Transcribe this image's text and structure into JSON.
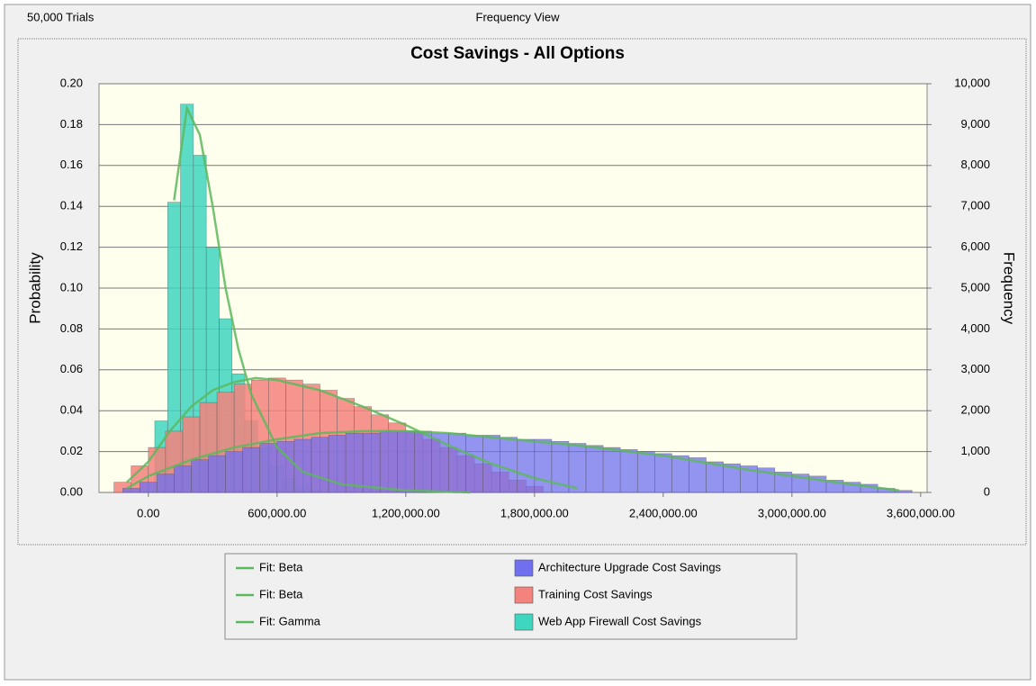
{
  "header": {
    "trials": "50,000 Trials",
    "view": "Frequency View"
  },
  "chart_data": {
    "type": "histogram",
    "title": "Cost Savings - All Options",
    "ylabel": "Probability",
    "y2label": "Frequency",
    "xlim": [
      -230000,
      3630000
    ],
    "xticks": [
      {
        "value": 0,
        "label": "0.00"
      },
      {
        "value": 600000,
        "label": "600,000.00"
      },
      {
        "value": 1200000,
        "label": "1,200,000.00"
      },
      {
        "value": 1800000,
        "label": "1,800,000.00"
      },
      {
        "value": 2400000,
        "label": "2,400,000.00"
      },
      {
        "value": 3000000,
        "label": "3,000,000.00"
      },
      {
        "value": 3600000,
        "label": "3,600,000.00"
      }
    ],
    "ylim": [
      0,
      0.2
    ],
    "yticks": [
      {
        "value": 0,
        "label": "0.00"
      },
      0.02,
      0.04,
      0.06,
      0.08,
      {
        "value": 0.1,
        "label": "0.10"
      },
      0.12,
      0.14,
      0.16,
      0.18,
      {
        "value": 0.2,
        "label": "0.20"
      }
    ],
    "y2lim": [
      0,
      10000
    ],
    "y2ticks": [
      0,
      {
        "value": 1000,
        "label": "1,000"
      },
      {
        "value": 2000,
        "label": "2,000"
      },
      {
        "value": 3000,
        "label": "3,000"
      },
      {
        "value": 4000,
        "label": "4,000"
      },
      {
        "value": 5000,
        "label": "5,000"
      },
      {
        "value": 6000,
        "label": "6,000"
      },
      {
        "value": 7000,
        "label": "7,000"
      },
      {
        "value": 8000,
        "label": "8,000"
      },
      {
        "value": 9000,
        "label": "9,000"
      },
      {
        "value": 10000,
        "label": "10,000"
      }
    ],
    "grid": true,
    "series": [
      {
        "name": "Architecture Upgrade Cost Savings",
        "color": "#6f6ff0",
        "bins": [
          -120000,
          -40000,
          40000,
          120000,
          200000,
          280000,
          360000,
          440000,
          520000,
          600000,
          680000,
          760000,
          840000,
          920000,
          1000000,
          1080000,
          1160000,
          1240000,
          1320000,
          1400000,
          1480000,
          1560000,
          1640000,
          1720000,
          1800000,
          1880000,
          1960000,
          2040000,
          2120000,
          2200000,
          2280000,
          2360000,
          2440000,
          2520000,
          2600000,
          2680000,
          2760000,
          2840000,
          2920000,
          3000000,
          3080000,
          3160000,
          3240000,
          3320000,
          3400000,
          3480000,
          3560000
        ],
        "values": [
          0.002,
          0.005,
          0.009,
          0.013,
          0.016,
          0.018,
          0.02,
          0.022,
          0.024,
          0.025,
          0.026,
          0.027,
          0.028,
          0.029,
          0.029,
          0.03,
          0.03,
          0.03,
          0.029,
          0.029,
          0.028,
          0.028,
          0.027,
          0.026,
          0.026,
          0.025,
          0.024,
          0.023,
          0.022,
          0.021,
          0.02,
          0.019,
          0.018,
          0.017,
          0.015,
          0.014,
          0.013,
          0.012,
          0.01,
          0.009,
          0.008,
          0.006,
          0.005,
          0.004,
          0.002,
          0.001
        ]
      },
      {
        "name": "Training Cost Savings",
        "color": "#f4837d",
        "bins": [
          -160000,
          -80000,
          0,
          80000,
          160000,
          240000,
          320000,
          400000,
          480000,
          560000,
          640000,
          720000,
          800000,
          880000,
          960000,
          1040000,
          1120000,
          1200000,
          1280000,
          1360000,
          1440000,
          1520000,
          1600000,
          1680000,
          1760000,
          1840000
        ],
        "values": [
          0.005,
          0.013,
          0.022,
          0.03,
          0.037,
          0.044,
          0.049,
          0.053,
          0.055,
          0.056,
          0.055,
          0.053,
          0.05,
          0.046,
          0.042,
          0.038,
          0.034,
          0.03,
          0.026,
          0.022,
          0.018,
          0.014,
          0.01,
          0.006,
          0.003
        ]
      },
      {
        "name": "Web App Firewall Cost Savings",
        "color": "#3fd6c0",
        "bins": [
          30000,
          90000,
          150000,
          210000,
          270000,
          330000,
          390000,
          450000,
          510000,
          570000,
          630000,
          690000,
          750000,
          810000
        ],
        "values": [
          0.035,
          0.142,
          0.19,
          0.165,
          0.12,
          0.085,
          0.058,
          0.035,
          0.022,
          0.013,
          0.007,
          0.003,
          0.001
        ]
      }
    ],
    "fits": [
      {
        "name": "Fit: Beta",
        "color": "#5cb85c",
        "x": [
          -100000,
          0,
          200000,
          400000,
          600000,
          800000,
          1000000,
          1200000,
          1400000,
          1600000,
          1800000,
          2000000,
          2400000,
          2800000,
          3200000,
          3500000
        ],
        "values": [
          0.002,
          0.008,
          0.016,
          0.022,
          0.026,
          0.029,
          0.03,
          0.03,
          0.029,
          0.027,
          0.025,
          0.023,
          0.018,
          0.011,
          0.005,
          0.001
        ]
      },
      {
        "name": "Fit: Beta",
        "color": "#5cb85c",
        "x": [
          -100000,
          0,
          100000,
          200000,
          300000,
          400000,
          500000,
          600000,
          800000,
          1000000,
          1200000,
          1400000,
          1600000,
          1800000,
          2000000
        ],
        "values": [
          0.005,
          0.015,
          0.03,
          0.042,
          0.05,
          0.054,
          0.056,
          0.055,
          0.05,
          0.042,
          0.033,
          0.023,
          0.014,
          0.007,
          0.002
        ]
      },
      {
        "name": "Fit: Gamma",
        "color": "#5cb85c",
        "x": [
          120000,
          180000,
          240000,
          300000,
          360000,
          420000,
          480000,
          600000,
          720000,
          900000,
          1200000,
          1500000
        ],
        "values": [
          0.143,
          0.188,
          0.175,
          0.14,
          0.1,
          0.07,
          0.048,
          0.022,
          0.01,
          0.004,
          0.001,
          0
        ]
      }
    ]
  }
}
